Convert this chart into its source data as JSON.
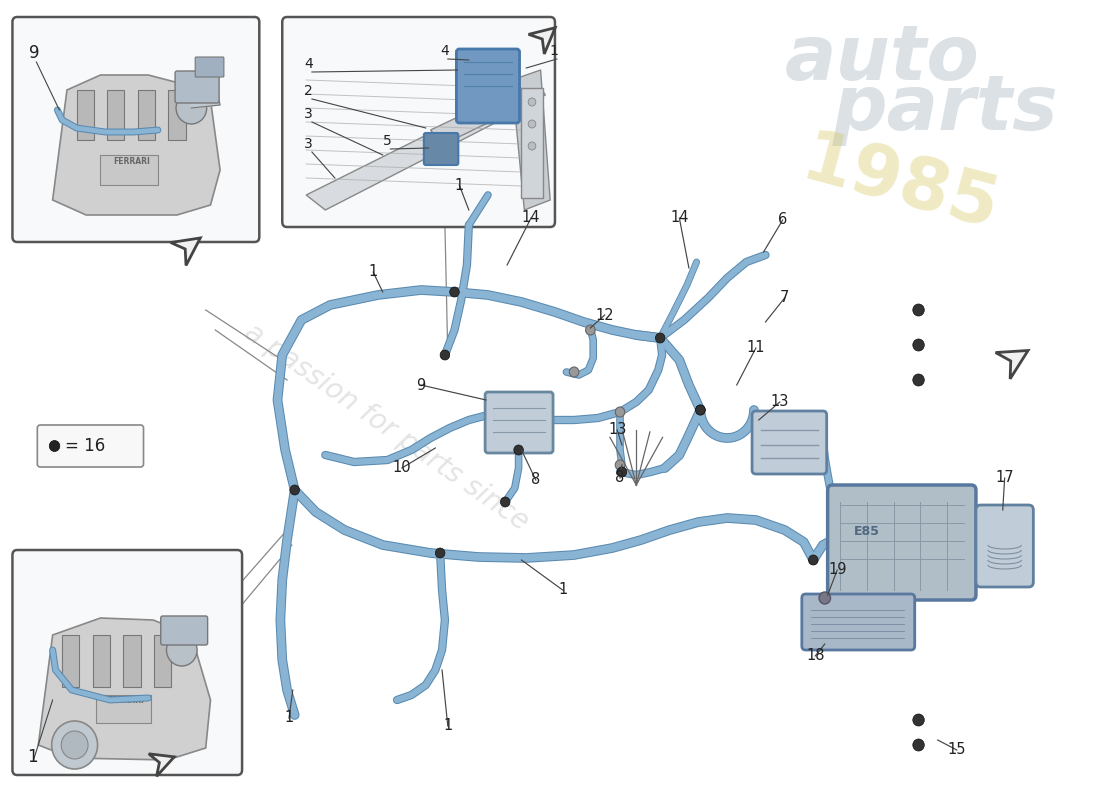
{
  "bg_color": "#ffffff",
  "hose_color": "#8ab4d4",
  "hose_dark": "#5a8ab0",
  "line_color": "#444444",
  "label_color": "#222222",
  "box_bg": "#f9f9f9",
  "box_edge": "#666666",
  "engine_gray": "#c8c8c8",
  "engine_dark": "#888888",
  "component_blue": "#a8c4d8",
  "watermark_gray": "#cccccc",
  "watermark_yellow": "#e8d878",
  "arrow_fill": "#f0f0f0",
  "arrow_edge": "#444444",
  "legend_text": "= 16",
  "part_numbers": [
    "1",
    "2",
    "3",
    "4",
    "5",
    "6",
    "7",
    "8",
    "9",
    "10",
    "11",
    "12",
    "13",
    "14",
    "15",
    "17",
    "18",
    "19"
  ]
}
